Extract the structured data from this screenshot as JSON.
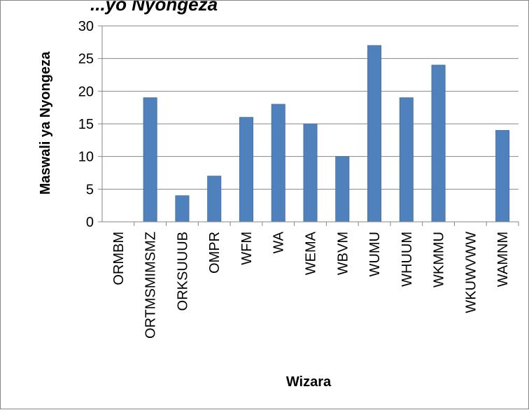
{
  "chart_data": {
    "type": "bar",
    "title": "...yo Nyongeza",
    "xlabel": "Wizara",
    "ylabel": "Maswali ya Nyongeza",
    "ylim": [
      0,
      30
    ],
    "yticks": [
      0,
      5,
      10,
      15,
      20,
      25,
      30
    ],
    "grid": true,
    "legend": "none",
    "categories": [
      "ORMBM",
      "ORTMSMIMSMZ",
      "ORKSUUUB",
      "OMPR",
      "WFM",
      "WA",
      "WEMA",
      "WBVM",
      "WUMU",
      "WHUUM",
      "WKMMU",
      "WKUWVWW",
      "WAMNM"
    ],
    "series": [
      {
        "values": [
          0,
          19,
          4,
          7,
          16,
          18,
          15,
          10,
          27,
          19,
          24,
          0,
          14
        ]
      }
    ],
    "colors": {
      "bar": "#4f81bd",
      "bar_edge": "#3f6fa8",
      "grid": "#878787",
      "axis": "#878787"
    }
  }
}
